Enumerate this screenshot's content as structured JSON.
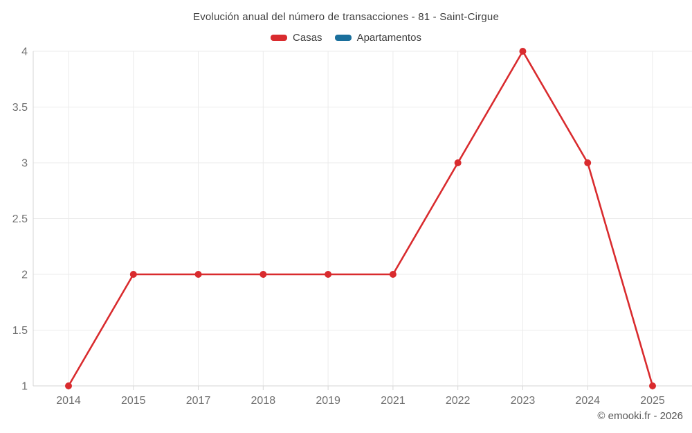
{
  "title": "Evolución anual del número de transacciones - 81 - Saint-Cirgue",
  "legend": {
    "items": [
      {
        "label": "Casas",
        "color": "#d92b2e"
      },
      {
        "label": "Apartamentos",
        "color": "#1a6f9c"
      }
    ]
  },
  "watermark": "© emooki.fr - 2026",
  "chart_data": {
    "type": "line",
    "title": "Evolución anual del número de transacciones - 81 - Saint-Cirgue",
    "categories": [
      "2014",
      "2015",
      "2017",
      "2018",
      "2019",
      "2021",
      "2022",
      "2023",
      "2024",
      "2025"
    ],
    "series": [
      {
        "name": "Casas",
        "color": "#d92b2e",
        "values": [
          1,
          2,
          2,
          2,
          2,
          2,
          3,
          4,
          3,
          1
        ]
      },
      {
        "name": "Apartamentos",
        "color": "#1a6f9c",
        "values": []
      }
    ],
    "xlabel": "",
    "ylabel": "",
    "ylim": [
      1,
      4
    ],
    "yticks": [
      1,
      1.5,
      2,
      2.5,
      3,
      3.5,
      4
    ],
    "ytick_labels": [
      "1",
      "1.5",
      "2",
      "2.5",
      "3",
      "3.5",
      "4"
    ],
    "grid": true,
    "legend_position": "top",
    "marker": "circle"
  }
}
